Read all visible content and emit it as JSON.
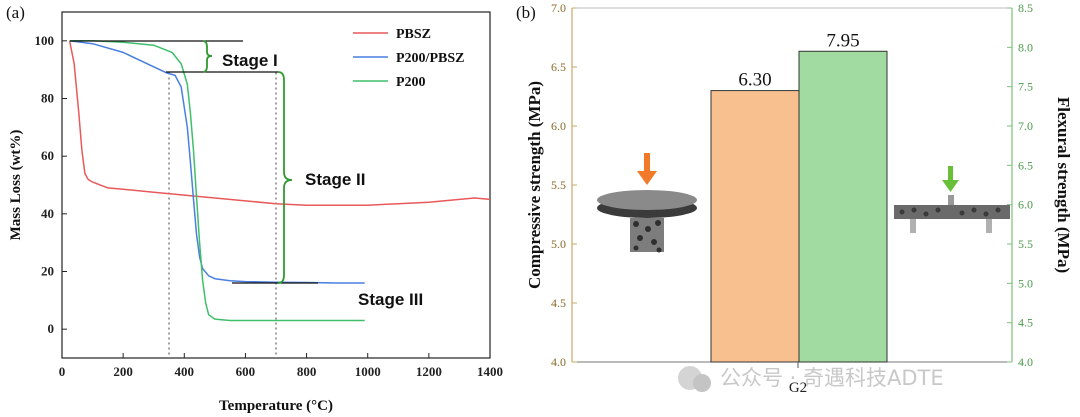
{
  "panel_a_label": "(a)",
  "panel_b_label": "(b)",
  "watermark_text": "公众号 · 奇遇科技ADTE",
  "colors": {
    "pbsz": "#e8595a",
    "p200pbsz": "#4a7fe0",
    "p200": "#3fbf6a",
    "orange_bar": "#f9c08f",
    "green_bar": "#a2dba1",
    "left_axis": "#8a6a2a",
    "right_axis": "#4b9a4b"
  },
  "chart_data": [
    {
      "type": "line",
      "xlabel": "Temperature (°C)",
      "ylabel": "Mass Loss (wt%)",
      "xlim": [
        0,
        1400
      ],
      "ylim": [
        -10,
        110
      ],
      "xticks": [
        0,
        200,
        400,
        600,
        800,
        1000,
        1200,
        1400
      ],
      "yticks": [
        0,
        20,
        40,
        60,
        80,
        100
      ],
      "legend_placement": "top-right",
      "grid": false,
      "series": [
        {
          "name": "PBSZ",
          "color": "#e8595a",
          "x": [
            25,
            40,
            55,
            65,
            75,
            85,
            100,
            150,
            200,
            300,
            400,
            500,
            600,
            700,
            800,
            900,
            1000,
            1100,
            1200,
            1300,
            1350,
            1400
          ],
          "y": [
            100,
            92,
            75,
            62,
            54,
            52,
            51,
            49,
            48.5,
            47.5,
            46.5,
            45.5,
            44.5,
            43.5,
            43,
            43,
            43,
            43.5,
            44,
            45,
            45.5,
            45
          ]
        },
        {
          "name": "P200/PBSZ",
          "color": "#4a7fe0",
          "x": [
            25,
            100,
            200,
            300,
            340,
            370,
            390,
            410,
            420,
            430,
            440,
            450,
            460,
            480,
            500,
            550,
            600,
            700,
            800,
            900,
            990
          ],
          "y": [
            100,
            99,
            96,
            91,
            89,
            88,
            84,
            70,
            58,
            45,
            33,
            25,
            21,
            18.5,
            17.5,
            16.8,
            16.5,
            16.3,
            16.2,
            16,
            16
          ]
        },
        {
          "name": "P200",
          "color": "#3fbf6a",
          "x": [
            25,
            100,
            200,
            300,
            360,
            390,
            410,
            420,
            430,
            440,
            450,
            460,
            470,
            480,
            500,
            550,
            600,
            700,
            800,
            900,
            990
          ],
          "y": [
            100,
            100,
            99.5,
            98.5,
            96,
            92,
            85,
            75,
            62,
            46,
            30,
            17,
            9,
            5,
            3.5,
            3,
            3,
            3,
            3,
            3,
            3
          ]
        }
      ],
      "annotations": [
        {
          "text": "Stage I"
        },
        {
          "text": "Stage II"
        },
        {
          "text": "Stage III"
        }
      ],
      "vlines": [
        350,
        700
      ]
    },
    {
      "type": "bar",
      "categories": [
        "G2"
      ],
      "ylabel": "Compressive strength (MPa)",
      "y2label": "Flexural strength (MPa)",
      "ylim": [
        4.0,
        7.0
      ],
      "y2lim": [
        4.0,
        8.5
      ],
      "yticks": [
        4.0,
        4.5,
        5.0,
        5.5,
        6.0,
        6.5,
        7.0
      ],
      "y2ticks": [
        4.0,
        4.5,
        5.0,
        5.5,
        6.0,
        6.5,
        7.0,
        7.5,
        8.0,
        8.5
      ],
      "series": [
        {
          "name": "Compressive strength",
          "axis": "left",
          "value": 6.3,
          "label": "6.30",
          "color": "#f9c08f"
        },
        {
          "name": "Flexural strength",
          "axis": "right",
          "value": 7.95,
          "label": "7.95",
          "color": "#a2dba1"
        }
      ]
    }
  ]
}
